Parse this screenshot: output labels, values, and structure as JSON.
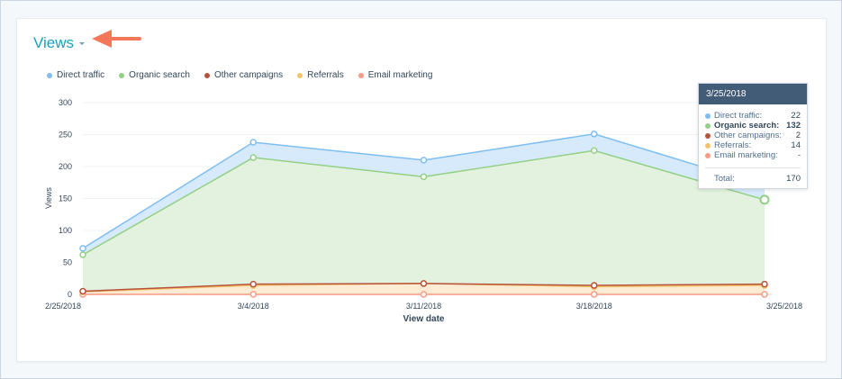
{
  "header": {
    "title": "Views"
  },
  "colors": {
    "direct": "#7fbef2",
    "organic": "#94cf87",
    "other": "#b5533c",
    "referrals": "#f5c26b",
    "email": "#f99a84",
    "accent": "#1b9fba",
    "arrow": "#f5775a"
  },
  "chart_data": {
    "type": "area",
    "stacked": true,
    "xlabel": "View date",
    "ylabel": "Views",
    "ylim": [
      0,
      300
    ],
    "yticks": [
      0,
      50,
      100,
      150,
      200,
      250,
      300
    ],
    "categories": [
      "2/25/2018",
      "3/4/2018",
      "3/11/2018",
      "3/18/2018",
      "3/25/2018"
    ],
    "grid": true,
    "legend": "top-left",
    "series": [
      {
        "name": "Email marketing",
        "key": "email",
        "values": [
          0,
          0,
          0,
          0,
          0
        ]
      },
      {
        "name": "Referrals",
        "key": "referrals",
        "values": [
          4,
          14,
          17,
          12,
          14
        ]
      },
      {
        "name": "Other campaigns",
        "key": "other",
        "values": [
          1,
          2,
          0,
          2,
          2
        ]
      },
      {
        "name": "Organic search",
        "key": "organic",
        "values": [
          57,
          198,
          167,
          211,
          132
        ]
      },
      {
        "name": "Direct traffic",
        "key": "direct",
        "values": [
          10,
          24,
          26,
          26,
          22
        ]
      }
    ]
  },
  "legend": [
    {
      "label": "Direct traffic",
      "key": "direct"
    },
    {
      "label": "Organic search",
      "key": "organic"
    },
    {
      "label": "Other campaigns",
      "key": "other"
    },
    {
      "label": "Referrals",
      "key": "referrals"
    },
    {
      "label": "Email marketing",
      "key": "email"
    }
  ],
  "tooltip": {
    "date": "3/25/2018",
    "rows": [
      {
        "label": "Direct traffic:",
        "value": "22",
        "key": "direct"
      },
      {
        "label": "Organic search:",
        "value": "132",
        "key": "organic"
      },
      {
        "label": "Other campaigns:",
        "value": "2",
        "key": "other"
      },
      {
        "label": "Referrals:",
        "value": "14",
        "key": "referrals"
      },
      {
        "label": "Email marketing:",
        "value": "-",
        "key": "email"
      }
    ],
    "total_label": "Total:",
    "total_value": "170"
  }
}
